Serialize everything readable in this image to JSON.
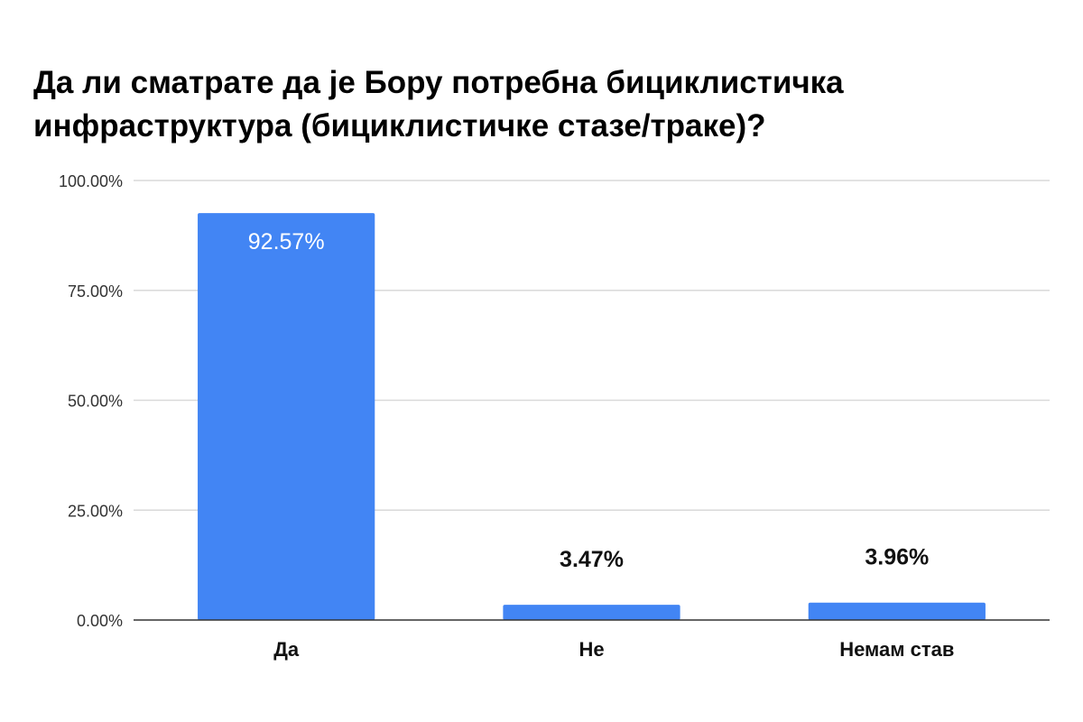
{
  "chart_data": {
    "type": "bar",
    "title": "Да ли сматрате да је Бору потребна бициклистичка инфраструктура (бициклистичке стазе/траке)?",
    "categories": [
      "Да",
      "Не",
      "Немам став"
    ],
    "values": [
      92.57,
      3.47,
      3.96
    ],
    "data_labels": [
      "92.57%",
      "3.47%",
      "3.96%"
    ],
    "ylim": [
      0,
      100
    ],
    "yticks": [
      0,
      25,
      50,
      75,
      100
    ],
    "ytick_labels": [
      "0.00%",
      "25.00%",
      "50.00%",
      "75.00%",
      "100.00%"
    ],
    "xlabel": "",
    "ylabel": "",
    "grid": true,
    "legend": "none",
    "colors": {
      "bar": "#4285f4",
      "grid": "#d9d9d9",
      "axis": "#333333"
    }
  }
}
